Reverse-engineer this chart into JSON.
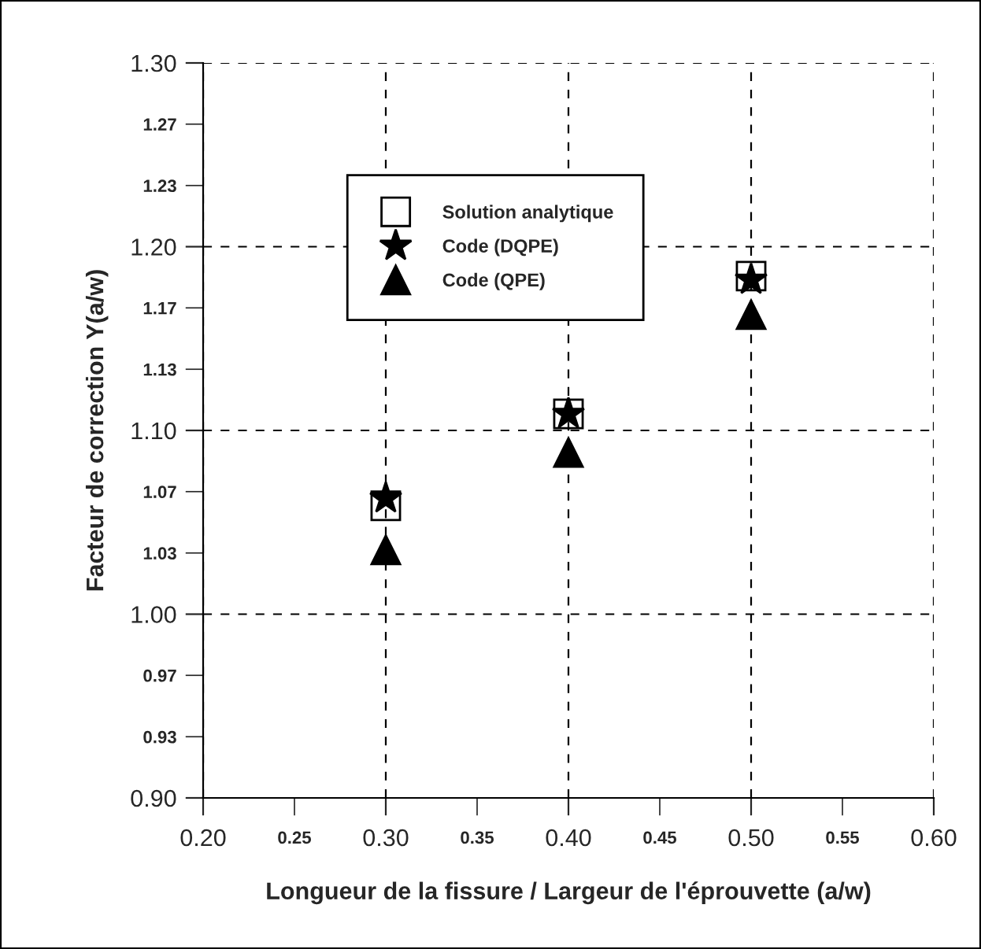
{
  "chart_data": {
    "type": "scatter",
    "xlabel": "Longueur de la fissure / Largeur de l'éprouvette (a/w)",
    "ylabel": "Facteur de correction Y(a/w)",
    "x": [
      0.3,
      0.4,
      0.5
    ],
    "series": [
      {
        "name": "Solution analytique",
        "color": "#000000",
        "marker": "square",
        "values": [
          1.059,
          1.109,
          1.184
        ]
      },
      {
        "name": "Code (DQPE)",
        "color": "#000000",
        "marker": "star",
        "values": [
          1.063,
          1.109,
          1.182
        ]
      },
      {
        "name": "Code (QPE)",
        "color": "#000000",
        "marker": "triangle",
        "values": [
          1.035,
          1.088,
          1.163
        ]
      }
    ],
    "xlim": [
      0.2,
      0.6
    ],
    "ylim": [
      0.9,
      1.3
    ],
    "xticks": [
      {
        "value": 0.2,
        "label": "0.20"
      },
      {
        "value": 0.25,
        "label": "0.25"
      },
      {
        "value": 0.3,
        "label": "0.30"
      },
      {
        "value": 0.35,
        "label": "0.35"
      },
      {
        "value": 0.4,
        "label": "0.40"
      },
      {
        "value": 0.45,
        "label": "0.45"
      },
      {
        "value": 0.5,
        "label": "0.50"
      },
      {
        "value": 0.55,
        "label": "0.55"
      },
      {
        "value": 0.6,
        "label": "0.60"
      }
    ],
    "yticks": [
      {
        "value": 0.9,
        "label": "0.90"
      },
      {
        "value": 0.9333,
        "label": "0.93"
      },
      {
        "value": 0.9667,
        "label": "0.97"
      },
      {
        "value": 1.0,
        "label": "1.00"
      },
      {
        "value": 1.0333,
        "label": "1.03"
      },
      {
        "value": 1.0667,
        "label": "1.07"
      },
      {
        "value": 1.1,
        "label": "1.10"
      },
      {
        "value": 1.1333,
        "label": "1.13"
      },
      {
        "value": 1.1667,
        "label": "1.17"
      },
      {
        "value": 1.2,
        "label": "1.20"
      },
      {
        "value": 1.2333,
        "label": "1.23"
      },
      {
        "value": 1.2667,
        "label": "1.27"
      },
      {
        "value": 1.3,
        "label": "1.30"
      }
    ],
    "grid": true,
    "legend": "top"
  }
}
